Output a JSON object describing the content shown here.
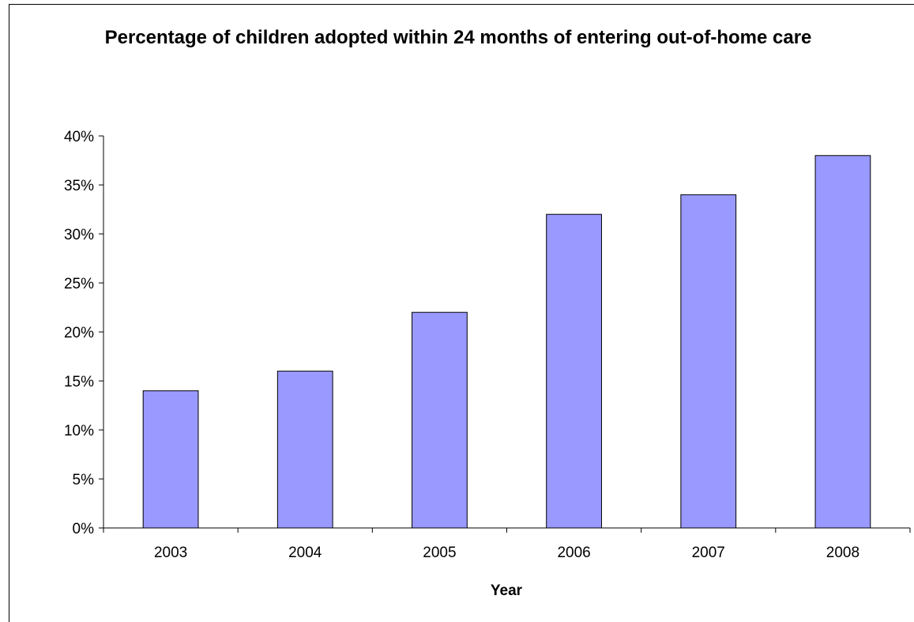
{
  "chart_data": {
    "type": "bar",
    "title": "Percentage of children adopted within 24 months of entering out-of-home care",
    "xlabel": "Year",
    "ylabel": "",
    "categories": [
      "2003",
      "2004",
      "2005",
      "2006",
      "2007",
      "2008"
    ],
    "values": [
      14,
      16,
      22,
      32,
      34,
      38
    ],
    "value_unit": "%",
    "ylim": [
      0,
      40
    ],
    "yticks": [
      0,
      5,
      10,
      15,
      20,
      25,
      30,
      35,
      40
    ],
    "ytick_labels": [
      "0%",
      "5%",
      "10%",
      "15%",
      "20%",
      "25%",
      "30%",
      "35%",
      "40%"
    ],
    "grid": false,
    "legend": "none",
    "bar_color": "#9999ff",
    "bar_edge_color": "#000000"
  }
}
